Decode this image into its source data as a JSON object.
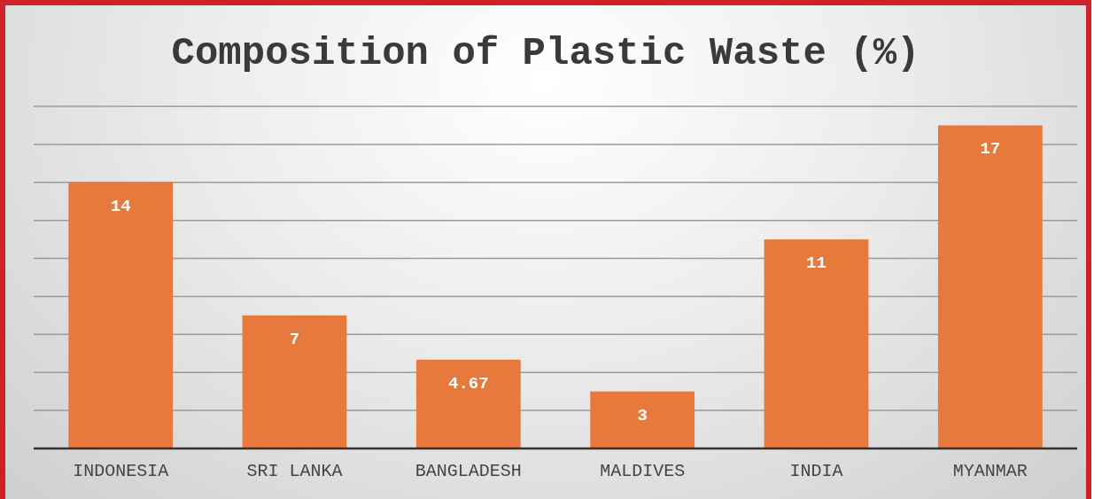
{
  "chart_data": {
    "type": "bar",
    "title": "Composition of Plastic Waste (%)",
    "categories": [
      "INDONESIA",
      "SRI LANKA",
      "BANGLADESH",
      "MALDIVES",
      "INDIA",
      "MYANMAR"
    ],
    "values": [
      14,
      7,
      4.67,
      3,
      11,
      17
    ],
    "color": "#e8793d",
    "ylim": [
      0,
      18
    ],
    "yticks": [
      {
        "value": 0,
        "label": null
      },
      {
        "value": 2,
        "label": null
      },
      {
        "value": 4,
        "label": null
      },
      {
        "value": 6,
        "label": null
      },
      {
        "value": 8,
        "label": null
      },
      {
        "value": 10,
        "label": null
      },
      {
        "value": 12,
        "label": null
      },
      {
        "value": 14,
        "label": null
      },
      {
        "value": 16,
        "label": null
      },
      {
        "value": 18,
        "label": null
      }
    ],
    "grid": "y",
    "tick_labels": "x",
    "data_labels": true
  }
}
